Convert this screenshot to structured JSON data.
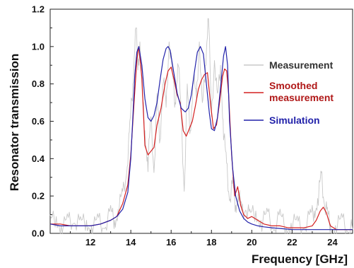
{
  "chart_data": {
    "type": "line",
    "xlabel": "Frequency [GHz]",
    "ylabel": "Resonator transmission",
    "xlim": [
      10,
      25
    ],
    "ylim": [
      0,
      1.2
    ],
    "x_ticks": [
      12,
      14,
      16,
      18,
      20,
      22,
      24
    ],
    "y_ticks": [
      "0.0",
      "0.2",
      "0.4",
      "0.6",
      "0.8",
      "1.0",
      "1.2"
    ],
    "grid": false,
    "legend_position": "right",
    "series": [
      {
        "name": "Measurement",
        "color": "#c8c8c8",
        "style": "noisy",
        "x": [
          10.0,
          10.3,
          10.6,
          10.9,
          11.2,
          11.5,
          11.8,
          12.1,
          12.4,
          12.7,
          13.0,
          13.2,
          13.4,
          13.6,
          13.8,
          13.95,
          14.1,
          14.25,
          14.35,
          14.45,
          14.55,
          14.7,
          14.85,
          15.0,
          15.15,
          15.3,
          15.45,
          15.6,
          15.75,
          15.9,
          16.05,
          16.2,
          16.35,
          16.5,
          16.65,
          16.8,
          16.95,
          17.1,
          17.25,
          17.4,
          17.55,
          17.7,
          17.85,
          18.0,
          18.15,
          18.3,
          18.45,
          18.6,
          18.75,
          18.9,
          19.05,
          19.2,
          19.35,
          19.5,
          19.7,
          19.9,
          20.2,
          20.5,
          20.8,
          21.1,
          21.4,
          21.7,
          22.0,
          22.3,
          22.6,
          22.9,
          23.1,
          23.3,
          23.45,
          23.6,
          23.75,
          23.9,
          24.2,
          24.5,
          24.8,
          25.0
        ],
        "y": [
          0.05,
          0.09,
          0.03,
          0.06,
          0.08,
          0.04,
          0.07,
          0.03,
          0.06,
          0.05,
          0.1,
          0.07,
          0.14,
          0.2,
          0.35,
          0.55,
          0.8,
          1.15,
          0.85,
          1.05,
          0.75,
          0.55,
          0.38,
          0.6,
          0.35,
          0.7,
          0.5,
          0.85,
          0.65,
          1.05,
          0.85,
          0.7,
          0.95,
          0.6,
          0.25,
          0.75,
          0.55,
          0.85,
          0.7,
          1.05,
          0.65,
          0.9,
          1.2,
          0.6,
          0.95,
          0.7,
          0.9,
          0.55,
          0.35,
          0.2,
          0.25,
          0.15,
          0.22,
          0.1,
          0.15,
          0.08,
          0.12,
          0.06,
          0.09,
          0.04,
          0.08,
          0.03,
          0.06,
          0.04,
          0.05,
          0.08,
          0.12,
          0.2,
          0.3,
          0.18,
          0.09,
          0.05,
          0.04,
          0.06,
          0.03,
          0.02
        ]
      },
      {
        "name": "Smoothed measurement",
        "color": "#d42020",
        "x": [
          10.0,
          10.5,
          11.0,
          11.5,
          12.0,
          12.5,
          13.0,
          13.3,
          13.6,
          13.85,
          14.0,
          14.15,
          14.3,
          14.4,
          14.55,
          14.7,
          14.85,
          15.0,
          15.15,
          15.3,
          15.5,
          15.7,
          15.85,
          16.0,
          16.15,
          16.3,
          16.45,
          16.6,
          16.75,
          16.9,
          17.05,
          17.2,
          17.35,
          17.5,
          17.65,
          17.8,
          17.95,
          18.1,
          18.25,
          18.4,
          18.55,
          18.65,
          18.75,
          18.85,
          19.0,
          19.15,
          19.3,
          19.45,
          19.6,
          19.8,
          20.0,
          20.3,
          20.6,
          21.0,
          21.4,
          21.8,
          22.2,
          22.6,
          23.0,
          23.2,
          23.4,
          23.55,
          23.7,
          23.9,
          24.2,
          24.6,
          25.0
        ],
        "y": [
          0.05,
          0.05,
          0.04,
          0.04,
          0.04,
          0.05,
          0.07,
          0.09,
          0.16,
          0.26,
          0.42,
          0.68,
          0.93,
          1.0,
          0.83,
          0.47,
          0.42,
          0.44,
          0.46,
          0.58,
          0.67,
          0.8,
          0.87,
          0.89,
          0.82,
          0.74,
          0.7,
          0.55,
          0.52,
          0.56,
          0.6,
          0.68,
          0.77,
          0.82,
          0.85,
          0.86,
          0.7,
          0.56,
          0.58,
          0.7,
          0.84,
          0.88,
          0.87,
          0.75,
          0.42,
          0.2,
          0.25,
          0.15,
          0.1,
          0.08,
          0.09,
          0.07,
          0.05,
          0.04,
          0.04,
          0.03,
          0.03,
          0.03,
          0.04,
          0.07,
          0.12,
          0.14,
          0.11,
          0.04,
          0.02,
          0.02,
          0.02
        ]
      },
      {
        "name": "Simulation",
        "color": "#2222aa",
        "x": [
          10.0,
          10.5,
          11.0,
          11.5,
          12.0,
          12.5,
          13.0,
          13.3,
          13.6,
          13.85,
          14.0,
          14.1,
          14.2,
          14.3,
          14.4,
          14.55,
          14.7,
          14.85,
          15.0,
          15.15,
          15.3,
          15.45,
          15.6,
          15.75,
          15.85,
          15.95,
          16.1,
          16.3,
          16.5,
          16.7,
          16.85,
          17.0,
          17.15,
          17.3,
          17.45,
          17.6,
          17.75,
          17.9,
          18.0,
          18.15,
          18.3,
          18.45,
          18.6,
          18.7,
          18.8,
          18.9,
          19.05,
          19.2,
          19.4,
          19.6,
          19.8,
          20.0,
          20.3,
          20.6,
          21.0,
          21.5,
          22.0,
          22.5,
          23.0,
          23.5,
          24.0,
          24.5,
          25.0
        ],
        "y": [
          0.05,
          0.04,
          0.04,
          0.04,
          0.04,
          0.05,
          0.07,
          0.09,
          0.13,
          0.22,
          0.4,
          0.62,
          0.85,
          0.97,
          1.0,
          0.9,
          0.72,
          0.62,
          0.6,
          0.63,
          0.7,
          0.82,
          0.93,
          0.99,
          1.0,
          0.98,
          0.88,
          0.75,
          0.67,
          0.65,
          0.67,
          0.74,
          0.86,
          0.97,
          1.0,
          0.96,
          0.8,
          0.64,
          0.56,
          0.55,
          0.62,
          0.78,
          0.95,
          1.0,
          0.9,
          0.6,
          0.35,
          0.2,
          0.12,
          0.08,
          0.06,
          0.05,
          0.04,
          0.035,
          0.03,
          0.025,
          0.02,
          0.02,
          0.02,
          0.02,
          0.02,
          0.02,
          0.02
        ]
      }
    ],
    "legend": {
      "measurement": "Measurement",
      "smoothed_line1": "Smoothed",
      "smoothed_line2": "measurement",
      "simulation": "Simulation"
    }
  }
}
